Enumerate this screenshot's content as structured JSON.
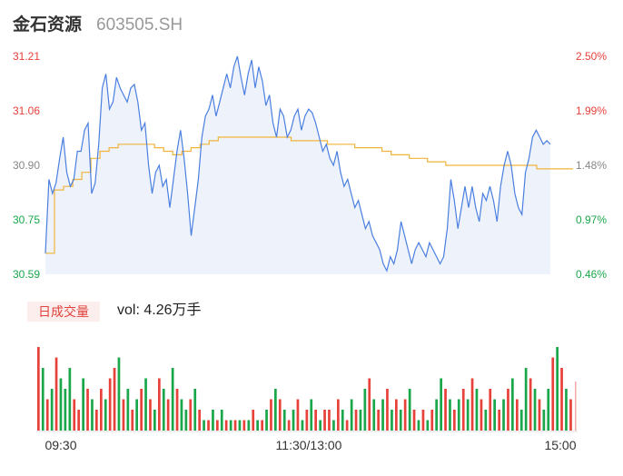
{
  "header": {
    "name": "金石资源",
    "code": "603505.SH"
  },
  "volume_panel": {
    "tab_label": "日成交量",
    "vol_text": "vol: 4.26万手"
  },
  "colors": {
    "price_line": "#4a7fe0",
    "avg_line": "#f0b43c",
    "up": "#e8413a",
    "down": "#1aa64a",
    "area": "#eef2fb",
    "axis_text": "#888888"
  },
  "chart_data": [
    {
      "type": "line",
      "title": "",
      "x_ticks": [
        "09:30",
        "11:30/13:00",
        "15:00"
      ],
      "y_ticks_left": [
        "31.21",
        "31.06",
        "30.90",
        "30.75",
        "30.59"
      ],
      "y_ticks_right": [
        "2.50%",
        "1.99%",
        "1.48%",
        "0.97%",
        "0.46%"
      ],
      "ylim": [
        30.59,
        31.21
      ],
      "series": [
        {
          "key": "price",
          "values": [
            30.65,
            30.86,
            30.82,
            30.85,
            30.92,
            30.98,
            30.88,
            30.84,
            30.86,
            30.94,
            30.94,
            31.0,
            31.02,
            30.82,
            30.85,
            30.96,
            31.12,
            31.16,
            31.06,
            31.08,
            31.15,
            31.12,
            31.1,
            31.08,
            31.12,
            31.13,
            31.08,
            31.0,
            31.02,
            30.9,
            30.82,
            30.88,
            30.9,
            30.84,
            30.86,
            30.78,
            30.86,
            30.94,
            31.0,
            30.92,
            30.82,
            30.7,
            30.78,
            30.86,
            30.98,
            31.04,
            31.06,
            31.1,
            31.04,
            31.08,
            31.12,
            31.16,
            31.12,
            31.18,
            31.21,
            31.15,
            31.1,
            31.16,
            31.2,
            31.12,
            31.18,
            31.14,
            31.07,
            31.1,
            31.02,
            30.98,
            31.06,
            31.04,
            30.98,
            31.0,
            31.04,
            31.06,
            31.0,
            31.04,
            31.06,
            31.05,
            31.02,
            30.98,
            30.94,
            30.96,
            30.92,
            30.9,
            30.94,
            30.88,
            30.84,
            30.86,
            30.82,
            30.78,
            30.8,
            30.76,
            30.72,
            30.74,
            30.7,
            30.68,
            30.66,
            30.62,
            30.6,
            30.64,
            30.62,
            30.66,
            30.74,
            30.7,
            30.66,
            30.62,
            30.66,
            30.68,
            30.66,
            30.64,
            30.68,
            30.66,
            30.64,
            30.62,
            30.64,
            30.72,
            30.86,
            30.8,
            30.72,
            30.78,
            30.84,
            30.78,
            30.84,
            30.78,
            30.74,
            30.82,
            30.8,
            30.84,
            30.8,
            30.74,
            30.84,
            30.9,
            30.94,
            30.9,
            30.82,
            30.78,
            30.76,
            30.88,
            30.92,
            30.98,
            31.0,
            30.98,
            30.96,
            30.97,
            30.96
          ],
          "t_end": 0.957
        },
        {
          "key": "avg",
          "values": [
            30.65,
            30.83,
            30.84,
            30.86,
            30.88,
            30.92,
            30.94,
            30.95,
            30.96,
            30.96,
            30.96,
            30.96,
            30.95,
            30.94,
            30.93,
            30.94,
            30.95,
            30.96,
            30.97,
            30.98,
            30.98,
            30.98,
            30.98,
            30.98,
            30.98,
            30.98,
            30.98,
            30.97,
            30.97,
            30.97,
            30.97,
            30.96,
            30.96,
            30.96,
            30.95,
            30.95,
            30.95,
            30.94,
            30.93,
            30.93,
            30.92,
            30.92,
            30.91,
            30.91,
            30.9,
            30.9,
            30.9,
            30.9,
            30.9,
            30.9,
            30.9,
            30.9,
            30.9,
            30.9,
            30.89,
            30.89,
            30.89,
            30.89,
            30.89
          ],
          "t_end": 1.0
        }
      ]
    },
    {
      "type": "bar",
      "title": "",
      "values": [
        8,
        6,
        3,
        4,
        7,
        5,
        4,
        6,
        3,
        2,
        5,
        4,
        3,
        2,
        4,
        3,
        5,
        6,
        7,
        3,
        4,
        2,
        3,
        4,
        5,
        3,
        2,
        5,
        4,
        3,
        6,
        4,
        3,
        2,
        3,
        4,
        2,
        1,
        1,
        2,
        1,
        2,
        1,
        1,
        1,
        1,
        1,
        1,
        2,
        1,
        1,
        2,
        3,
        4,
        3,
        2,
        1,
        2,
        3,
        1,
        2,
        3,
        2,
        1,
        2,
        2,
        1,
        3,
        2,
        1,
        3,
        2,
        2,
        4,
        5,
        3,
        2,
        3,
        4,
        2,
        3,
        2,
        3,
        4,
        2,
        1,
        2,
        1,
        2,
        3,
        5,
        4,
        3,
        2,
        3,
        4,
        3,
        5,
        4,
        3,
        2,
        4,
        3,
        2,
        3,
        4,
        5,
        3,
        2,
        6,
        5,
        4,
        3,
        2,
        4,
        7,
        8,
        6,
        4,
        3
      ],
      "max": 8,
      "colors_seq": "rgrgrgggrrgrgrrgrrgrgrgrgrgrgrgrggrgrgrgrgrgrgrgrgrgrgrgrgrgrgrgrrgrgrgrggrgrgrgrgrgrgrgrggrgrgrgrgrgrgrgrgrggrgrggrgrgrrgr"
    }
  ]
}
